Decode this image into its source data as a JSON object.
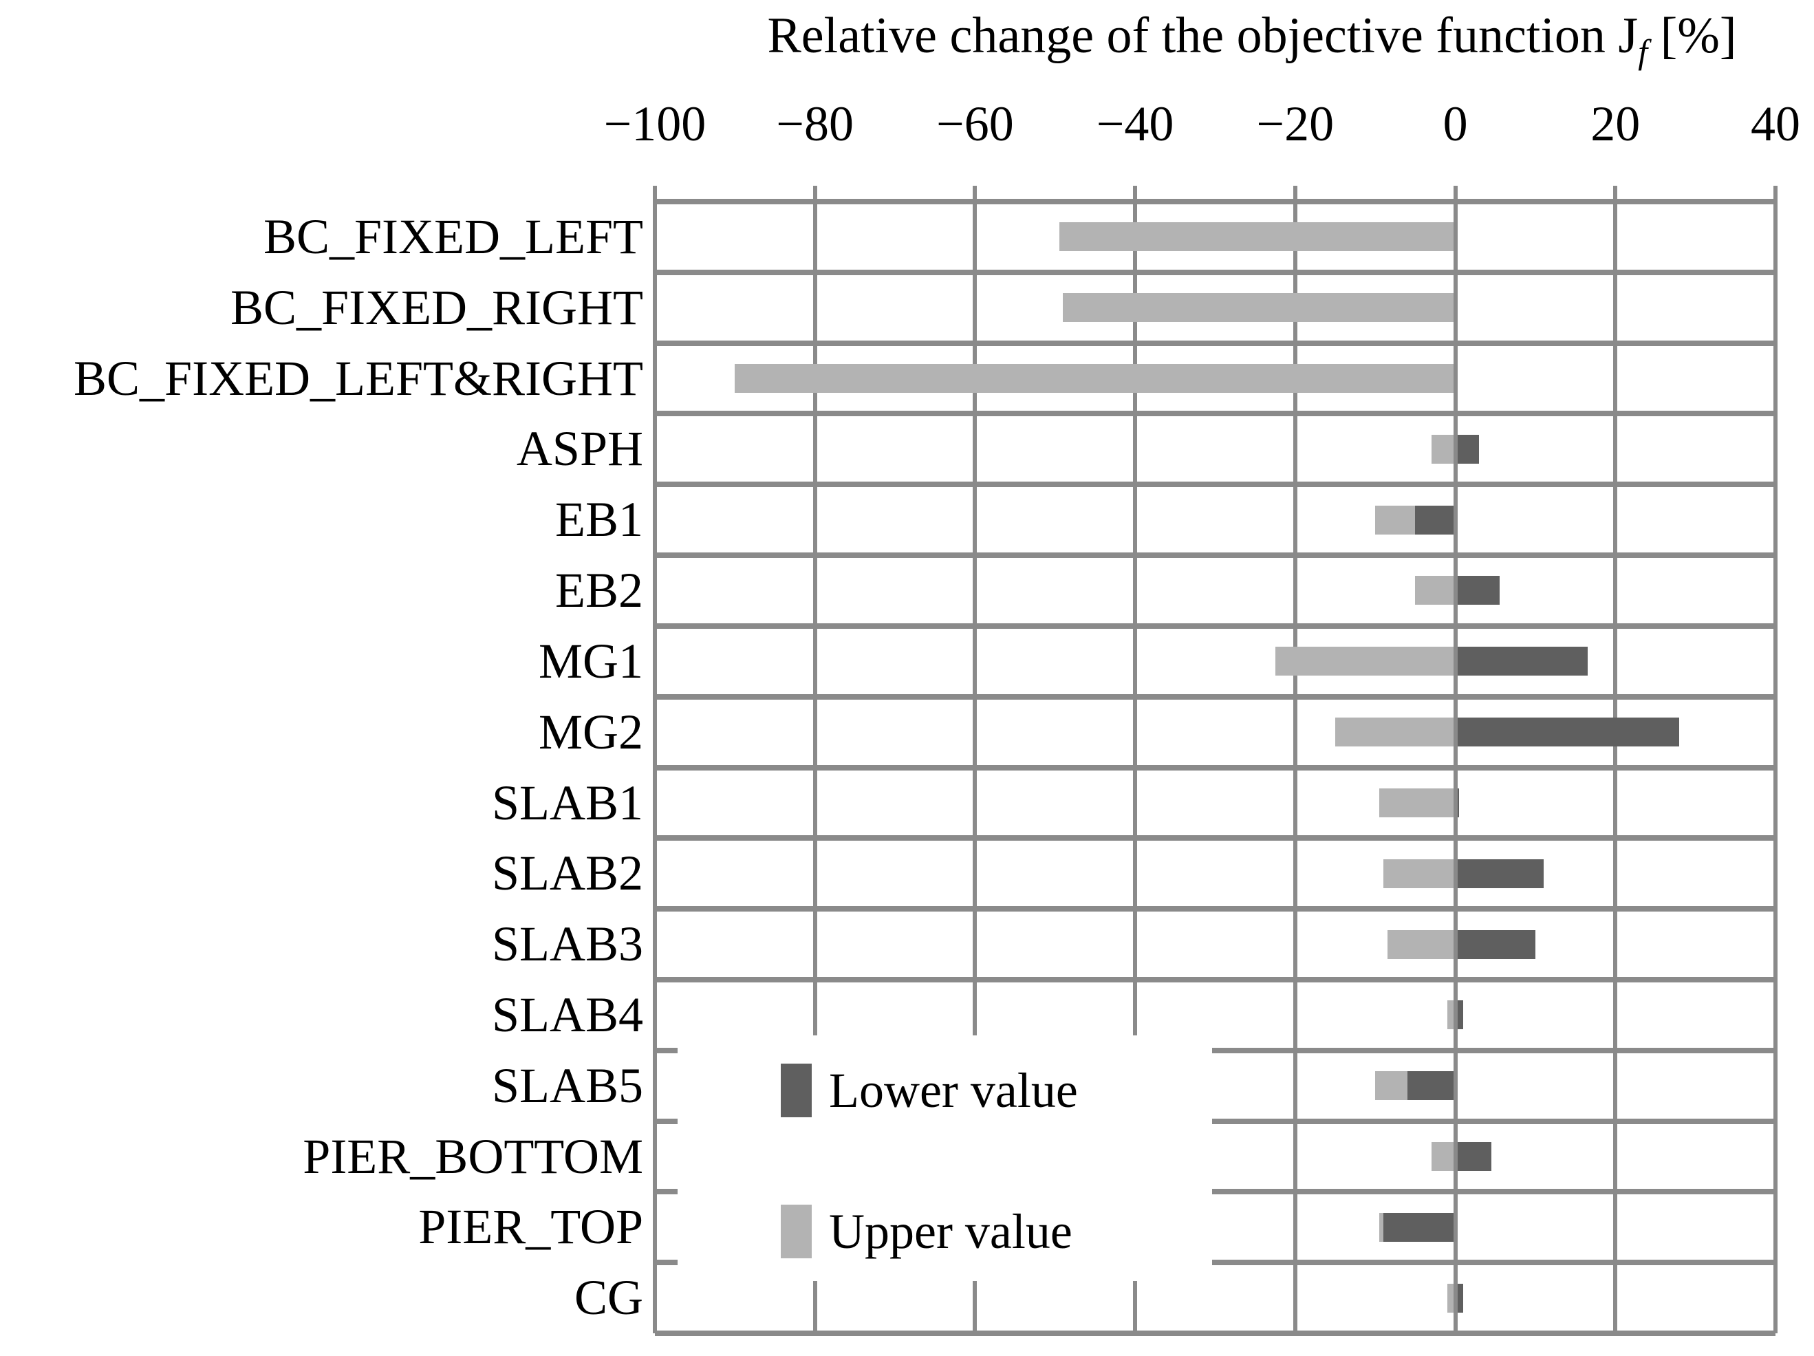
{
  "chart_data": {
    "type": "bar",
    "orientation": "horizontal",
    "title_main": "Relative change of the objective function J",
    "title_sub": "f",
    "title_suffix": " [%]",
    "xlim": [
      -100,
      40
    ],
    "x_ticks": [
      -100,
      -80,
      -60,
      -40,
      -20,
      0,
      20,
      40
    ],
    "x_tick_labels": [
      "−100",
      "−80",
      "−60",
      "−40",
      "−20",
      "0",
      "20",
      "40"
    ],
    "grid": true,
    "legend_position": "inside-lower-left",
    "categories": [
      "BC_FIXED_LEFT",
      "BC_FIXED_RIGHT",
      "BC_FIXED_LEFT&RIGHT",
      "ASPH",
      "EB1",
      "EB2",
      "MG1",
      "MG2",
      "SLAB1",
      "SLAB2",
      "SLAB3",
      "SLAB4",
      "SLAB5",
      "PIER_BOTTOM",
      "PIER_TOP",
      "CG"
    ],
    "series": [
      {
        "name": "Lower value",
        "color": "#5f5f5f",
        "values": [
          0,
          0,
          0,
          3,
          -5,
          5.5,
          16.5,
          28,
          0.5,
          11,
          10,
          1,
          -6,
          4.5,
          -9,
          1
        ]
      },
      {
        "name": "Upper value",
        "color": "#b3b3b3",
        "values": [
          -49.5,
          -49,
          -90,
          -3,
          -10,
          -5,
          -22.5,
          -15,
          -9.5,
          -9,
          -8.5,
          -1,
          -10,
          -3,
          -9.5,
          -1
        ]
      }
    ]
  },
  "legend": {
    "lower_label": "Lower value",
    "upper_label": "Upper value"
  },
  "colors": {
    "lower": "#5f5f5f",
    "upper": "#b3b3b3",
    "gridline": "#8a8a8a",
    "background": "#ffffff",
    "text": "#000000"
  }
}
